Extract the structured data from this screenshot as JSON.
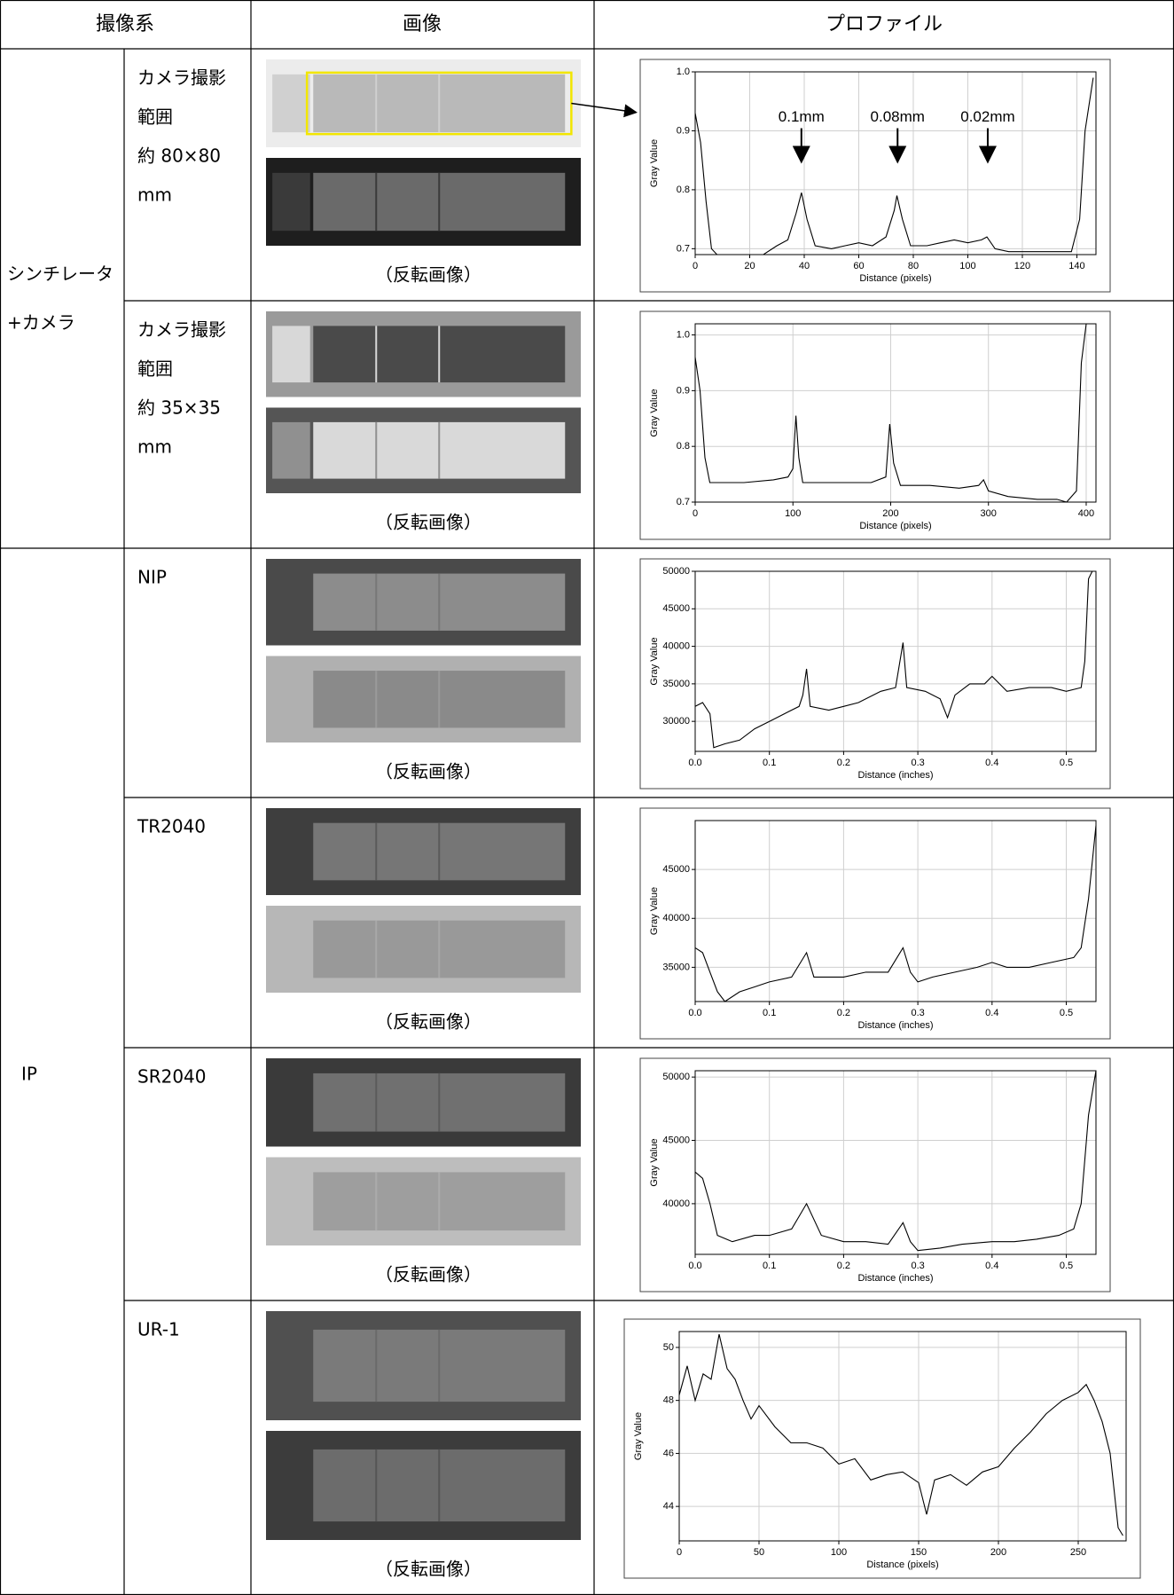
{
  "header": [
    "撮像系",
    "画像",
    "プロファイル"
  ],
  "groups": [
    {
      "system": [
        "シンチレータ",
        "+カメラ"
      ],
      "rows": [
        {
          "label": [
            "カメラ撮影",
            "範囲",
            "約 80×80",
            "mm"
          ],
          "caption": "（反転画像）"
        },
        {
          "label": [
            "カメラ撮影",
            "範囲",
            "約 35×35",
            "mm"
          ],
          "caption": "（反転画像）"
        }
      ]
    },
    {
      "system": [
        "IP"
      ],
      "rows": [
        {
          "label": [
            "NIP"
          ],
          "caption": "（反転画像）"
        },
        {
          "label": [
            "TR2040"
          ],
          "caption": "（反転画像）"
        },
        {
          "label": [
            "SR2040"
          ],
          "caption": "（反転画像）"
        },
        {
          "label": [
            "UR-1"
          ],
          "caption": "（反転画像）"
        }
      ]
    }
  ],
  "chart_data": [
    {
      "type": "line",
      "xlabel": "Distance (pixels)",
      "ylabel": "Gray Value",
      "color": "#000000",
      "grid": true,
      "annotations": [
        "0.1mm",
        "0.08mm",
        "0.02mm"
      ],
      "xlim": [
        0,
        147
      ],
      "ylim": [
        0.69,
        1.0
      ],
      "xticks": [
        0,
        20,
        40,
        60,
        80,
        100,
        120,
        140
      ],
      "yticks": [
        0.7,
        0.8,
        0.9,
        {
          "value": 1,
          "label": "1.0"
        }
      ],
      "x": [
        0,
        2,
        4,
        6,
        8,
        15,
        20,
        25,
        30,
        34,
        37,
        39,
        41,
        44,
        50,
        55,
        60,
        65,
        70,
        73,
        74,
        76,
        79,
        85,
        90,
        95,
        100,
        105,
        107,
        110,
        115,
        120,
        130,
        138,
        141,
        143,
        146
      ],
      "values": [
        0.93,
        0.88,
        0.78,
        0.7,
        0.69,
        0.69,
        0.69,
        0.69,
        0.705,
        0.715,
        0.76,
        0.795,
        0.75,
        0.705,
        0.7,
        0.705,
        0.71,
        0.705,
        0.72,
        0.765,
        0.79,
        0.75,
        0.705,
        0.705,
        0.71,
        0.715,
        0.71,
        0.715,
        0.72,
        0.7,
        0.695,
        0.695,
        0.695,
        0.695,
        0.75,
        0.9,
        0.99
      ]
    },
    {
      "type": "line",
      "xlabel": "Distance (pixels)",
      "ylabel": "Gray Value",
      "color": "#000000",
      "grid": true,
      "xlim": [
        0,
        410
      ],
      "ylim": [
        0.7,
        1.02
      ],
      "xticks": [
        0,
        100,
        200,
        300,
        400
      ],
      "yticks": [
        0.7,
        0.8,
        0.9,
        {
          "value": 1,
          "label": "1.0"
        }
      ],
      "x": [
        0,
        5,
        10,
        15,
        30,
        50,
        80,
        95,
        100,
        103,
        106,
        110,
        130,
        150,
        180,
        195,
        199,
        203,
        210,
        240,
        270,
        290,
        295,
        300,
        320,
        350,
        370,
        380,
        390,
        395,
        400,
        405
      ],
      "values": [
        0.96,
        0.9,
        0.78,
        0.735,
        0.735,
        0.735,
        0.74,
        0.745,
        0.76,
        0.855,
        0.78,
        0.735,
        0.735,
        0.735,
        0.735,
        0.745,
        0.84,
        0.77,
        0.73,
        0.73,
        0.725,
        0.73,
        0.74,
        0.72,
        0.71,
        0.705,
        0.705,
        0.7,
        0.72,
        0.95,
        1.02,
        1.02
      ]
    },
    {
      "type": "line",
      "xlabel": "Distance (inches)",
      "ylabel": "Gray Value",
      "color": "#000000",
      "grid": true,
      "xlim": [
        0,
        0.54
      ],
      "ylim": [
        26000,
        50000
      ],
      "xticks": [
        {
          "value": 0,
          "label": "0.0"
        },
        0.1,
        0.2,
        0.3,
        0.4,
        0.5
      ],
      "yticks": [
        30000,
        35000,
        40000,
        45000,
        50000
      ],
      "x": [
        0,
        0.01,
        0.02,
        0.025,
        0.04,
        0.06,
        0.08,
        0.1,
        0.12,
        0.14,
        0.145,
        0.15,
        0.155,
        0.18,
        0.2,
        0.22,
        0.25,
        0.27,
        0.28,
        0.285,
        0.31,
        0.33,
        0.34,
        0.35,
        0.37,
        0.39,
        0.4,
        0.42,
        0.45,
        0.48,
        0.5,
        0.52,
        0.525,
        0.53,
        0.535
      ],
      "values": [
        32000,
        32500,
        31000,
        26500,
        27000,
        27500,
        29000,
        30000,
        31000,
        32000,
        33500,
        37000,
        32000,
        31500,
        32000,
        32500,
        34000,
        34500,
        40500,
        34500,
        34000,
        33000,
        30500,
        33500,
        35000,
        35000,
        36000,
        34000,
        34500,
        34500,
        34000,
        34500,
        38000,
        49000,
        50000
      ]
    },
    {
      "type": "line",
      "xlabel": "Distance (inches)",
      "ylabel": "Gray Value",
      "color": "#000000",
      "grid": true,
      "xlim": [
        0,
        0.54
      ],
      "ylim": [
        31500,
        50000
      ],
      "xticks": [
        {
          "value": 0,
          "label": "0.0"
        },
        0.1,
        0.2,
        0.3,
        0.4,
        0.5
      ],
      "yticks": [
        35000,
        40000,
        45000
      ],
      "x": [
        0,
        0.01,
        0.02,
        0.03,
        0.04,
        0.06,
        0.08,
        0.1,
        0.13,
        0.15,
        0.16,
        0.18,
        0.2,
        0.23,
        0.26,
        0.28,
        0.29,
        0.3,
        0.32,
        0.35,
        0.38,
        0.4,
        0.42,
        0.45,
        0.48,
        0.51,
        0.52,
        0.53,
        0.54
      ],
      "values": [
        37000,
        36500,
        34500,
        32500,
        31500,
        32500,
        33000,
        33500,
        34000,
        36500,
        34000,
        34000,
        34000,
        34500,
        34500,
        37000,
        34500,
        33500,
        34000,
        34500,
        35000,
        35500,
        35000,
        35000,
        35500,
        36000,
        37000,
        42000,
        49500
      ]
    },
    {
      "type": "line",
      "xlabel": "Distance (inches)",
      "ylabel": "Gray Value",
      "color": "#000000",
      "grid": true,
      "xlim": [
        0,
        0.54
      ],
      "ylim": [
        36000,
        50500
      ],
      "xticks": [
        {
          "value": 0,
          "label": "0.0"
        },
        0.1,
        0.2,
        0.3,
        0.4,
        0.5
      ],
      "yticks": [
        40000,
        45000,
        50000
      ],
      "x": [
        0,
        0.01,
        0.02,
        0.03,
        0.05,
        0.08,
        0.1,
        0.13,
        0.15,
        0.17,
        0.2,
        0.23,
        0.26,
        0.28,
        0.29,
        0.3,
        0.33,
        0.36,
        0.4,
        0.43,
        0.46,
        0.49,
        0.51,
        0.52,
        0.53,
        0.54
      ],
      "values": [
        42500,
        42000,
        40000,
        37500,
        37000,
        37500,
        37500,
        38000,
        40000,
        37500,
        37000,
        37000,
        36800,
        38500,
        37000,
        36300,
        36500,
        36800,
        37000,
        37000,
        37200,
        37500,
        38000,
        40000,
        47000,
        50500
      ]
    },
    {
      "type": "line",
      "xlabel": "Distance (pixels)",
      "ylabel": "Gray Value",
      "color": "#000000",
      "grid": true,
      "xlim": [
        0,
        280
      ],
      "ylim": [
        42.7,
        50.6
      ],
      "xticks": [
        0,
        50,
        100,
        150,
        200,
        250
      ],
      "yticks": [
        44,
        46,
        48,
        50
      ],
      "x": [
        0,
        5,
        10,
        15,
        20,
        25,
        30,
        35,
        40,
        45,
        50,
        60,
        70,
        80,
        90,
        100,
        110,
        120,
        130,
        140,
        150,
        155,
        160,
        170,
        180,
        190,
        200,
        210,
        220,
        230,
        240,
        250,
        255,
        260,
        265,
        270,
        275,
        278
      ],
      "values": [
        48.2,
        49.3,
        48.0,
        49.0,
        48.8,
        50.5,
        49.2,
        48.8,
        48.0,
        47.3,
        47.8,
        47.0,
        46.4,
        46.4,
        46.2,
        45.6,
        45.8,
        45.0,
        45.2,
        45.3,
        44.9,
        43.7,
        45.0,
        45.2,
        44.8,
        45.3,
        45.5,
        46.2,
        46.8,
        47.5,
        48.0,
        48.3,
        48.6,
        48.0,
        47.2,
        46.0,
        43.2,
        42.9
      ]
    }
  ]
}
